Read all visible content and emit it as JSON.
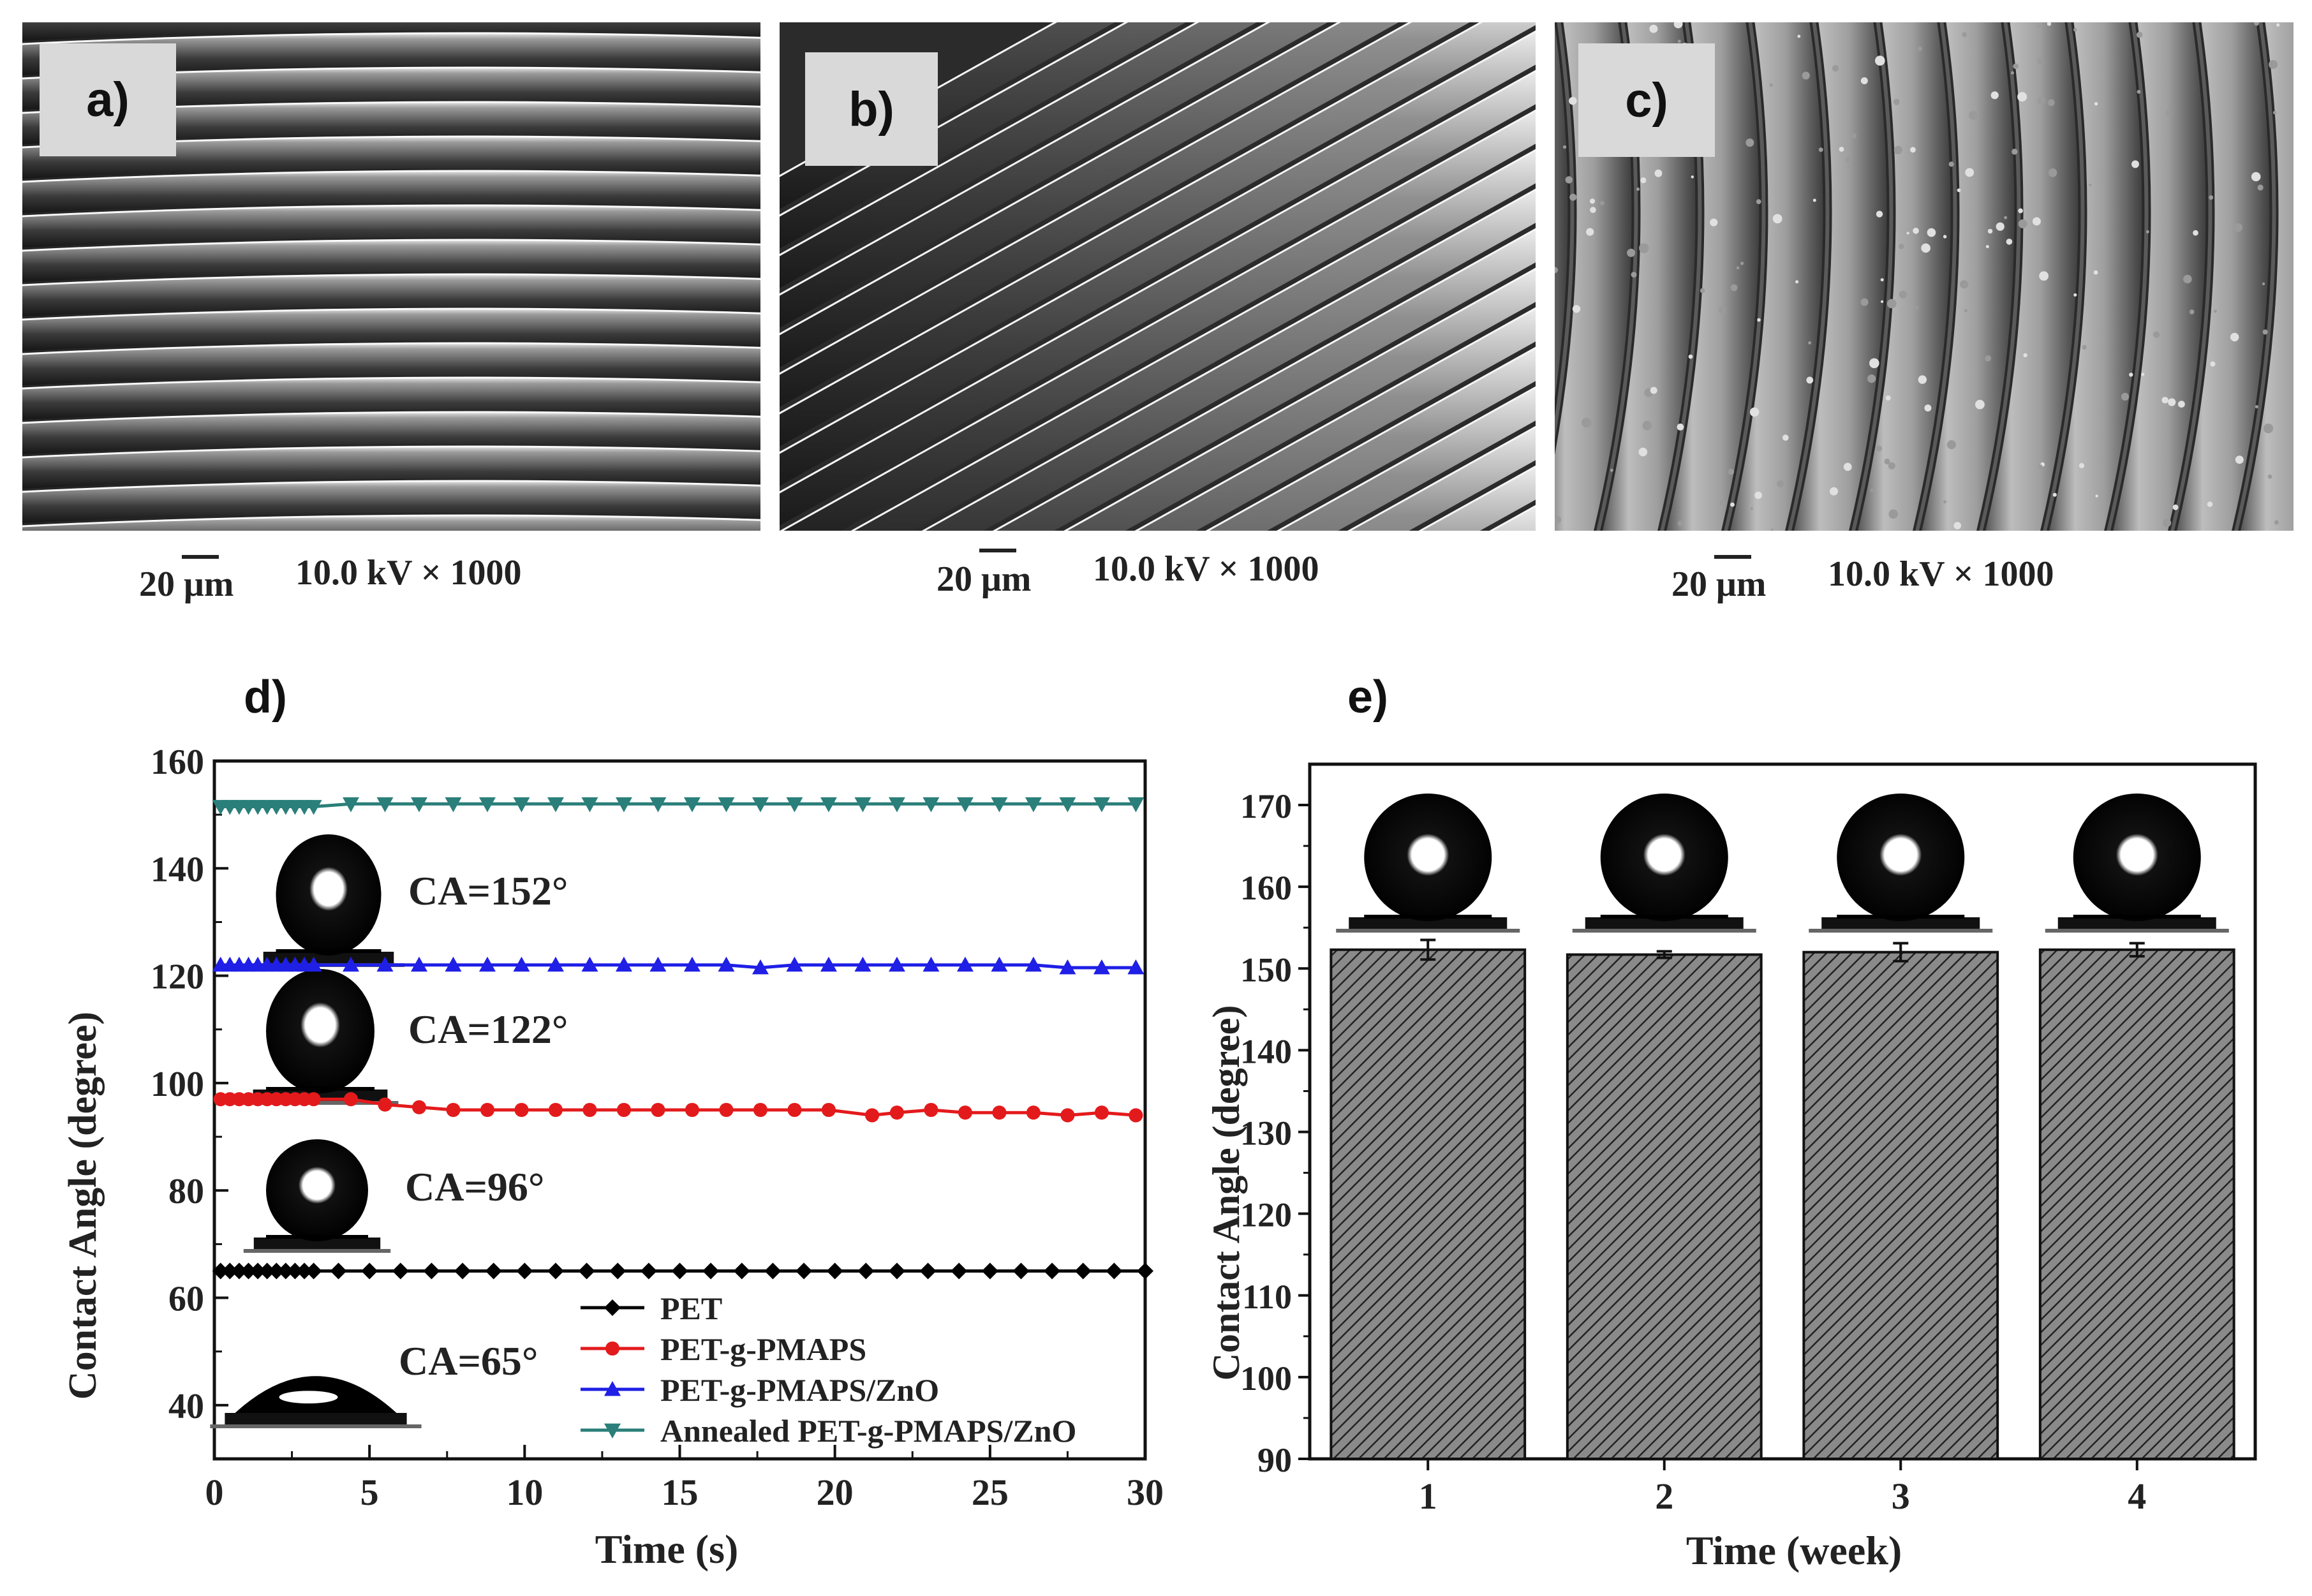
{
  "sem_panels": [
    {
      "label": "a)",
      "scale_text": "20 μm",
      "info_text": "10.0 kV × 1000"
    },
    {
      "label": "b)",
      "scale_text": "20 μm",
      "info_text": "10.0 kV × 1000"
    },
    {
      "label": "c)",
      "scale_text": "20 μm",
      "info_text": "10.0 kV × 1000"
    }
  ],
  "chart_data": [
    {
      "panel": "d)",
      "type": "line",
      "xlabel": "Time (s)",
      "ylabel": "Contact Angle (degree)",
      "xlim": [
        0,
        30
      ],
      "ylim": [
        30,
        160
      ],
      "xticks": [
        0,
        5,
        10,
        15,
        20,
        25,
        30
      ],
      "yticks": [
        40,
        60,
        80,
        100,
        120,
        140,
        160
      ],
      "series": [
        {
          "name": "PET",
          "color": "#000000",
          "marker": "diamond",
          "x": [
            0.2,
            0.5,
            0.8,
            1.1,
            1.4,
            1.7,
            2.0,
            2.3,
            2.6,
            2.9,
            3.2,
            4,
            5,
            6,
            7,
            8,
            9,
            10,
            11,
            12,
            13,
            14,
            15,
            16,
            17,
            18,
            19,
            20,
            21,
            22,
            23,
            24,
            25,
            26,
            27,
            28,
            29,
            30
          ],
          "y": [
            65,
            65,
            65,
            65,
            65,
            65,
            65,
            65,
            65,
            65,
            65,
            65,
            65,
            65,
            65,
            65,
            65,
            65,
            65,
            65,
            65,
            65,
            65,
            65,
            65,
            65,
            65,
            65,
            65,
            65,
            65,
            65,
            65,
            65,
            65,
            65,
            65,
            65
          ]
        },
        {
          "name": "PET-g-PMAPS",
          "color": "#e31a1c",
          "marker": "circle",
          "x": [
            0.2,
            0.5,
            0.8,
            1.1,
            1.4,
            1.7,
            2.0,
            2.3,
            2.6,
            2.9,
            3.2,
            4.4,
            5.5,
            6.6,
            7.7,
            8.8,
            9.9,
            11.0,
            12.1,
            13.2,
            14.3,
            15.4,
            16.5,
            17.6,
            18.7,
            19.8,
            21.2,
            22.0,
            23.1,
            24.2,
            25.3,
            26.4,
            27.5,
            28.6,
            29.7
          ],
          "y": [
            97,
            97,
            97,
            97,
            97,
            97,
            97,
            97,
            97,
            97,
            97,
            97,
            96,
            95.5,
            95,
            95,
            95,
            95,
            95,
            95,
            95,
            95,
            95,
            95,
            95,
            95,
            94,
            94.5,
            95,
            94.5,
            94.5,
            94.5,
            94,
            94.5,
            94
          ]
        },
        {
          "name": "PET-g-PMAPS/ZnO",
          "color": "#1f1fe6",
          "marker": "triangle-up",
          "x": [
            0.2,
            0.5,
            0.8,
            1.1,
            1.4,
            1.7,
            2.0,
            2.3,
            2.6,
            2.9,
            3.2,
            4.4,
            5.5,
            6.6,
            7.7,
            8.8,
            9.9,
            11.0,
            12.1,
            13.2,
            14.3,
            15.4,
            16.5,
            17.6,
            18.7,
            19.8,
            20.9,
            22.0,
            23.1,
            24.2,
            25.3,
            26.4,
            27.5,
            28.6,
            29.7
          ],
          "y": [
            122,
            122,
            122,
            122,
            122,
            122,
            122,
            122,
            122,
            122,
            122,
            122,
            122,
            122,
            122,
            122,
            122,
            122,
            122,
            122,
            122,
            122,
            122,
            121.5,
            122,
            122,
            122,
            122,
            122,
            122,
            122,
            122,
            121.5,
            121.5,
            121.5
          ]
        },
        {
          "name": "Annealed PET-g-PMAPS/ZnO",
          "color": "#2a7f7a",
          "marker": "triangle-down",
          "x": [
            0.2,
            0.5,
            0.8,
            1.1,
            1.4,
            1.7,
            2.0,
            2.3,
            2.6,
            2.9,
            3.2,
            4.4,
            5.5,
            6.6,
            7.7,
            8.8,
            9.9,
            11.0,
            12.1,
            13.2,
            14.3,
            15.4,
            16.5,
            17.6,
            18.7,
            19.8,
            20.9,
            22.0,
            23.1,
            24.2,
            25.3,
            26.4,
            27.5,
            28.6,
            29.7
          ],
          "y": [
            151.5,
            151.5,
            151.5,
            151.5,
            151.5,
            151.5,
            151.5,
            151.5,
            151.5,
            151.5,
            151.5,
            152,
            152,
            152,
            152,
            152,
            152,
            152,
            152,
            152,
            152,
            152,
            152,
            152,
            152,
            152,
            152,
            152,
            152,
            152,
            152,
            152,
            152,
            152,
            152
          ]
        }
      ],
      "annotations": [
        "CA=152°",
        "CA=122°",
        "CA=96°",
        "CA=65°"
      ]
    },
    {
      "panel": "e)",
      "type": "bar",
      "xlabel": "Time (week)",
      "ylabel": "Contact Angle (degree)",
      "ylim": [
        90,
        175
      ],
      "yticks": [
        90,
        100,
        110,
        120,
        130,
        140,
        150,
        160,
        170
      ],
      "categories": [
        "1",
        "2",
        "3",
        "4"
      ],
      "values": [
        152.3,
        151.7,
        152.0,
        152.3
      ],
      "errors": [
        1.2,
        0.4,
        1.1,
        0.8
      ]
    }
  ]
}
